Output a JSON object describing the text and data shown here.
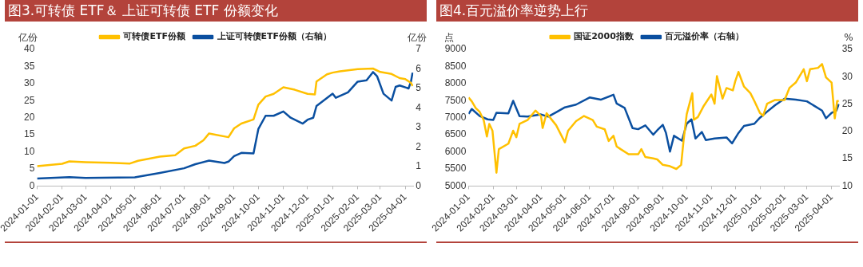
{
  "chart_data": [
    {
      "type": "line",
      "title": "图3.可转债 ETF＆ 上证可转债 ETF 份额变化",
      "ylabel": "亿份",
      "y2label": "亿份",
      "legend": "top",
      "grid": false,
      "marker": "none",
      "line_style": "solid",
      "xlim": [
        "2024-01-01",
        "2025-04-11"
      ],
      "xticks": [
        "2024-01-01",
        "2024-02-01",
        "2024-03-01",
        "2024-04-01",
        "2024-05-01",
        "2024-06-01",
        "2024-07-01",
        "2024-08-01",
        "2024-09-01",
        "2024-10-01",
        "2024-11-01",
        "2024-12-01",
        "2025-01-01",
        "2025-02-01",
        "2025-03-01",
        "2025-04-01"
      ],
      "ylim": [
        0,
        40
      ],
      "yticks": [
        0,
        5,
        10,
        15,
        20,
        25,
        30,
        35,
        40
      ],
      "y2lim": [
        0,
        7
      ],
      "y2ticks": [
        0,
        1,
        2,
        3,
        4,
        5,
        6,
        7
      ],
      "series": [
        {
          "name": "可转债ETF份额",
          "color": "#ffc000",
          "x": [
            "2024-01-01",
            "2024-02-01",
            "2024-02-10",
            "2024-03-01",
            "2024-04-01",
            "2024-04-25",
            "2024-05-05",
            "2024-06-01",
            "2024-06-20",
            "2024-07-01",
            "2024-07-15",
            "2024-07-25",
            "2024-08-01",
            "2024-08-25",
            "2024-09-01",
            "2024-09-10",
            "2024-09-25",
            "2024-10-01",
            "2024-10-10",
            "2024-10-20",
            "2024-11-01",
            "2024-11-15",
            "2024-12-01",
            "2024-12-10",
            "2024-12-12",
            "2024-12-25",
            "2025-01-01",
            "2025-01-10",
            "2025-02-01",
            "2025-02-20",
            "2025-03-01",
            "2025-03-15",
            "2025-03-25",
            "2025-04-01",
            "2025-04-08",
            "2025-04-10"
          ],
          "values": [
            5.8,
            6.5,
            7.2,
            7.0,
            6.8,
            6.6,
            7.4,
            8.6,
            9.0,
            11,
            11.8,
            13.4,
            15.4,
            14.3,
            16.9,
            18.3,
            19.5,
            23.8,
            26.2,
            27,
            28.9,
            28.2,
            27,
            26.8,
            30.6,
            32.7,
            33.2,
            33.6,
            34.2,
            34.4,
            33.4,
            32.8,
            31.6,
            31.3,
            30.2,
            29.3
          ]
        },
        {
          "name": "上证可转债ETF份额（右轴）",
          "color": "#0a4fa0",
          "axis": "y2",
          "x": [
            "2024-01-01",
            "2024-02-10",
            "2024-03-01",
            "2024-05-01",
            "2024-06-01",
            "2024-07-01",
            "2024-07-15",
            "2024-08-01",
            "2024-08-20",
            "2024-08-25",
            "2024-09-01",
            "2024-09-10",
            "2024-09-25",
            "2024-10-01",
            "2024-10-10",
            "2024-10-20",
            "2024-11-01",
            "2024-11-10",
            "2024-11-25",
            "2024-12-01",
            "2024-12-08",
            "2024-12-12",
            "2025-01-01",
            "2025-01-05",
            "2025-01-20",
            "2025-02-01",
            "2025-02-12",
            "2025-02-20",
            "2025-02-25",
            "2025-03-05",
            "2025-03-15",
            "2025-03-20",
            "2025-03-25",
            "2025-04-05",
            "2025-04-08",
            "2025-04-10"
          ],
          "values": [
            0.38,
            0.46,
            0.42,
            0.45,
            0.67,
            0.91,
            1.12,
            1.3,
            1.18,
            1.25,
            1.53,
            1.7,
            1.67,
            2.92,
            3.6,
            3.6,
            3.82,
            3.5,
            3.2,
            3.4,
            3.5,
            4.1,
            4.73,
            4.52,
            4.8,
            5.35,
            5.42,
            5.84,
            5.63,
            4.73,
            4.38,
            5.08,
            5.15,
            5.0,
            5.35,
            5.81
          ]
        }
      ]
    },
    {
      "type": "line",
      "title": "图4.百元溢价率逆势上行",
      "ylabel": "点",
      "y2label": "%",
      "legend": "top",
      "grid": false,
      "marker": "none",
      "line_style": "solid",
      "xlim": [
        "2024-01-01",
        "2025-04-11"
      ],
      "xticks": [
        "2024-01-01",
        "2024-02-01",
        "2024-03-01",
        "2024-04-01",
        "2024-05-01",
        "2024-06-01",
        "2024-07-01",
        "2024-08-01",
        "2024-09-01",
        "2024-10-01",
        "2024-11-01",
        "2024-12-01",
        "2025-01-01",
        "2025-02-01",
        "2025-03-01",
        "2025-04-01"
      ],
      "ylim": [
        5000,
        9000
      ],
      "yticks": [
        5000,
        5500,
        6000,
        6500,
        7000,
        7500,
        8000,
        8500,
        9000
      ],
      "y2lim": [
        10,
        35
      ],
      "y2ticks": [
        10,
        15,
        20,
        25,
        30,
        35
      ],
      "series": [
        {
          "name": "国证2000指数",
          "color": "#ffc000",
          "x": [
            "2024-01-01",
            "2024-01-05",
            "2024-01-10",
            "2024-01-15",
            "2024-01-20",
            "2024-01-24",
            "2024-01-27",
            "2024-01-31",
            "2024-02-05",
            "2024-02-08",
            "2024-02-20",
            "2024-02-26",
            "2024-03-01",
            "2024-03-05",
            "2024-03-15",
            "2024-03-25",
            "2024-04-01",
            "2024-04-03",
            "2024-04-08",
            "2024-04-20",
            "2024-05-01",
            "2024-05-05",
            "2024-05-15",
            "2024-05-25",
            "2024-06-05",
            "2024-06-10",
            "2024-06-20",
            "2024-06-25",
            "2024-07-01",
            "2024-07-05",
            "2024-07-10",
            "2024-07-20",
            "2024-08-01",
            "2024-08-05",
            "2024-08-10",
            "2024-08-20",
            "2024-08-25",
            "2024-09-01",
            "2024-09-10",
            "2024-09-18",
            "2024-09-24",
            "2024-09-27",
            "2024-10-01",
            "2024-10-08",
            "2024-10-10",
            "2024-10-15",
            "2024-10-22",
            "2024-11-01",
            "2024-11-05",
            "2024-11-08",
            "2024-11-15",
            "2024-11-20",
            "2024-11-28",
            "2024-12-01",
            "2024-12-05",
            "2024-12-12",
            "2024-12-20",
            "2024-12-25",
            "2025-01-01",
            "2025-01-05",
            "2025-01-10",
            "2025-01-20",
            "2025-02-01",
            "2025-02-07",
            "2025-02-15",
            "2025-02-25",
            "2025-03-01",
            "2025-03-05",
            "2025-03-15",
            "2025-03-20",
            "2025-03-25",
            "2025-04-01",
            "2025-04-05",
            "2025-04-08",
            "2025-04-10"
          ],
          "values": [
            7590,
            7480,
            7280,
            7170,
            6930,
            6450,
            6820,
            6620,
            5390,
            6080,
            6240,
            6620,
            6430,
            6820,
            6930,
            7210,
            7050,
            6700,
            7130,
            6780,
            6280,
            6620,
            6900,
            7050,
            6930,
            6740,
            6660,
            6320,
            6470,
            6160,
            6080,
            5930,
            5930,
            6080,
            5850,
            5810,
            5780,
            5620,
            5580,
            5500,
            5620,
            6320,
            7100,
            7720,
            6940,
            7020,
            7330,
            7680,
            7410,
            8220,
            7560,
            7870,
            7800,
            8070,
            8340,
            7910,
            7720,
            7490,
            7140,
            7060,
            7410,
            7520,
            7520,
            7870,
            8030,
            8420,
            8070,
            8420,
            8460,
            8570,
            8180,
            8030,
            6980,
            7490,
            7490
          ]
        },
        {
          "name": "百元溢价率（右轴）",
          "color": "#0a4fa0",
          "axis": "y2",
          "x": [
            "2024-01-01",
            "2024-01-05",
            "2024-01-15",
            "2024-01-25",
            "2024-02-01",
            "2024-02-05",
            "2024-02-20",
            "2024-02-26",
            "2024-03-05",
            "2024-03-15",
            "2024-04-01",
            "2024-04-10",
            "2024-04-20",
            "2024-05-01",
            "2024-05-15",
            "2024-06-01",
            "2024-06-15",
            "2024-07-01",
            "2024-07-05",
            "2024-07-15",
            "2024-07-25",
            "2024-08-01",
            "2024-08-10",
            "2024-08-20",
            "2024-08-25",
            "2024-09-01",
            "2024-09-05",
            "2024-09-10",
            "2024-09-15",
            "2024-09-25",
            "2024-10-01",
            "2024-10-07",
            "2024-10-12",
            "2024-10-20",
            "2024-10-25",
            "2024-11-05",
            "2024-11-20",
            "2024-11-27",
            "2024-12-05",
            "2024-12-12",
            "2024-12-25",
            "2025-01-01",
            "2025-01-10",
            "2025-01-20",
            "2025-02-01",
            "2025-02-15",
            "2025-03-01",
            "2025-03-10",
            "2025-03-20",
            "2025-03-25",
            "2025-04-01",
            "2025-04-07",
            "2025-04-10"
          ],
          "values": [
            23.2,
            24.1,
            22.8,
            22.2,
            22.1,
            23.4,
            23.3,
            25.6,
            22.8,
            22.7,
            23.1,
            22.7,
            23.5,
            24.4,
            24.9,
            26.2,
            25.8,
            26.7,
            25.1,
            24.3,
            20.6,
            20.4,
            21.1,
            19.4,
            20.2,
            21.2,
            19.7,
            16.3,
            19.2,
            18.3,
            21.4,
            22.2,
            18.7,
            19.9,
            18.4,
            18.7,
            18.9,
            17.8,
            19.7,
            21.0,
            21.4,
            22.5,
            23.6,
            24.8,
            26.0,
            25.8,
            25.5,
            24.7,
            23.8,
            22.4,
            23.4,
            23.8,
            25.0
          ]
        }
      ]
    }
  ]
}
